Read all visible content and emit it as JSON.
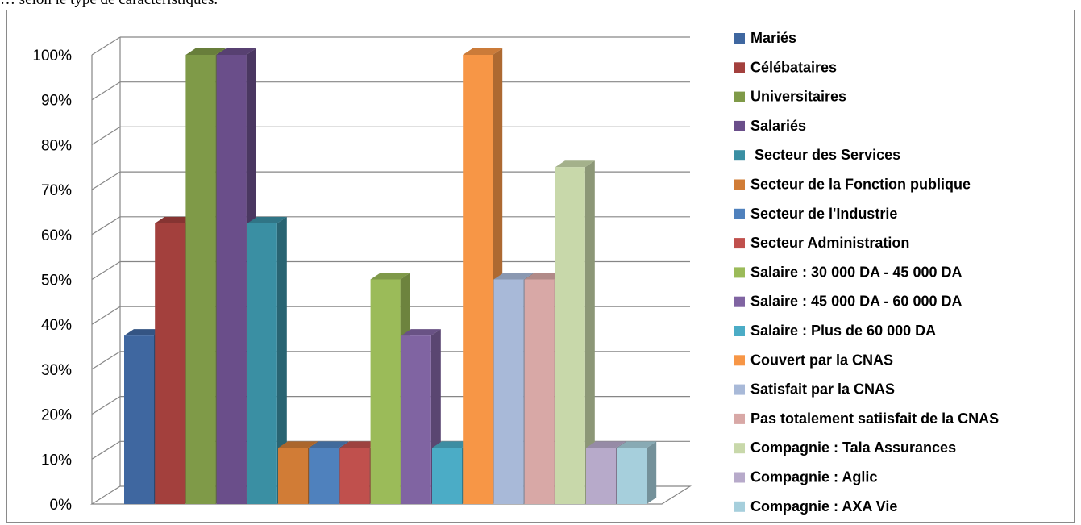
{
  "caption": "… selon le type de caractéristiques.",
  "chart_data": {
    "type": "bar",
    "title": "",
    "xlabel": "",
    "ylabel": "",
    "ylim": [
      0,
      100
    ],
    "y_ticks": [
      "0%",
      "10%",
      "20%",
      "30%",
      "40%",
      "50%",
      "60%",
      "70%",
      "80%",
      "90%",
      "100%"
    ],
    "grid": true,
    "legend_position": "right",
    "series": [
      {
        "name": "Mariés",
        "value": 37.5,
        "color": "#3F67A0"
      },
      {
        "name": "Célébataires",
        "value": 62.5,
        "color": "#A3403D"
      },
      {
        "name": "Universitaires",
        "value": 100,
        "color": "#7F9A48"
      },
      {
        "name": "Salariés",
        "value": 100,
        "color": "#6A4E8A"
      },
      {
        "name": " Secteur des Services",
        "value": 62.5,
        "color": "#3A8FA3"
      },
      {
        "name": "Secteur de la Fonction publique",
        "value": 12.5,
        "color": "#D17C36"
      },
      {
        "name": "Secteur de l'Industrie",
        "value": 12.5,
        "color": "#4F81BD"
      },
      {
        "name": "Secteur Administration",
        "value": 12.5,
        "color": "#C0504D"
      },
      {
        "name": "Salaire : 30 000 DA - 45 000 DA",
        "value": 50,
        "color": "#9BBB59"
      },
      {
        "name": "Salaire : 45 000 DA - 60 000 DA",
        "value": 37.5,
        "color": "#8064A2"
      },
      {
        "name": "Salaire : Plus de 60 000 DA",
        "value": 12.5,
        "color": "#4BACC6"
      },
      {
        "name": "Couvert par la CNAS",
        "value": 100,
        "color": "#F79646"
      },
      {
        "name": "Satisfait par la CNAS",
        "value": 50,
        "color": "#A8B9D8"
      },
      {
        "name": "Pas totalement satiisfait de la CNAS",
        "value": 50,
        "color": "#D8A8A6"
      },
      {
        "name": "Compagnie : Tala Assurances",
        "value": 75,
        "color": "#C8D8AA"
      },
      {
        "name": "Compagnie : Aglic",
        "value": 12.5,
        "color": "#B7AACA"
      },
      {
        "name": "Compagnie : AXA Vie",
        "value": 12.5,
        "color": "#A6CFDC"
      }
    ]
  }
}
